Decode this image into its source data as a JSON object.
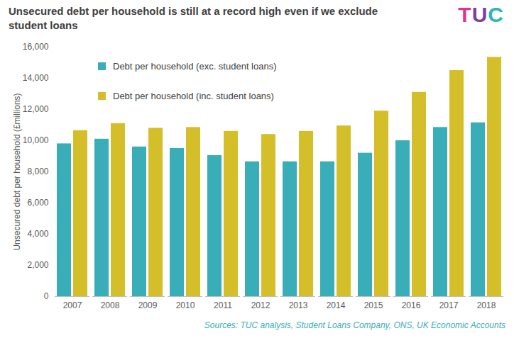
{
  "chart_data": {
    "type": "bar",
    "title": "Unsecured debt per household is still at a record high even if we exclude student loans",
    "logo": "TUC",
    "source": "Sources: TUC analysis, Student Loans Company, ONS, UK Economic Accounts",
    "y_label": "Unsecured debt per household (£millions)",
    "categories": [
      "2007",
      "2008",
      "2009",
      "2010",
      "2011",
      "2012",
      "2013",
      "2014",
      "2015",
      "2016",
      "2017",
      "2018"
    ],
    "series": [
      {
        "name": "Debt per household (exc. student loans)",
        "color": "#3aaeb8",
        "values": [
          9800,
          10100,
          9600,
          9500,
          9050,
          8650,
          8650,
          8650,
          9200,
          10000,
          10850,
          11150
        ]
      },
      {
        "name": "Debt per household (inc. student loans)",
        "color": "#d4bf2a",
        "values": [
          10650,
          11100,
          10800,
          10850,
          10600,
          10400,
          10600,
          10950,
          11900,
          13100,
          14500,
          15350
        ]
      }
    ],
    "ylim": [
      0,
      16000
    ],
    "yticks": [
      0,
      {
        "value": 2000,
        "label": "2,000"
      },
      {
        "value": 4000,
        "label": "4,000"
      },
      {
        "value": 6000,
        "label": "6,000"
      },
      {
        "value": 8000,
        "label": "8,000"
      },
      {
        "value": 10000,
        "label": "10,000"
      },
      {
        "value": 12000,
        "label": "12,000"
      },
      {
        "value": 14000,
        "label": "14,000"
      },
      {
        "value": 16000,
        "label": "16,000"
      }
    ],
    "grid": false,
    "legend": "top-left"
  }
}
